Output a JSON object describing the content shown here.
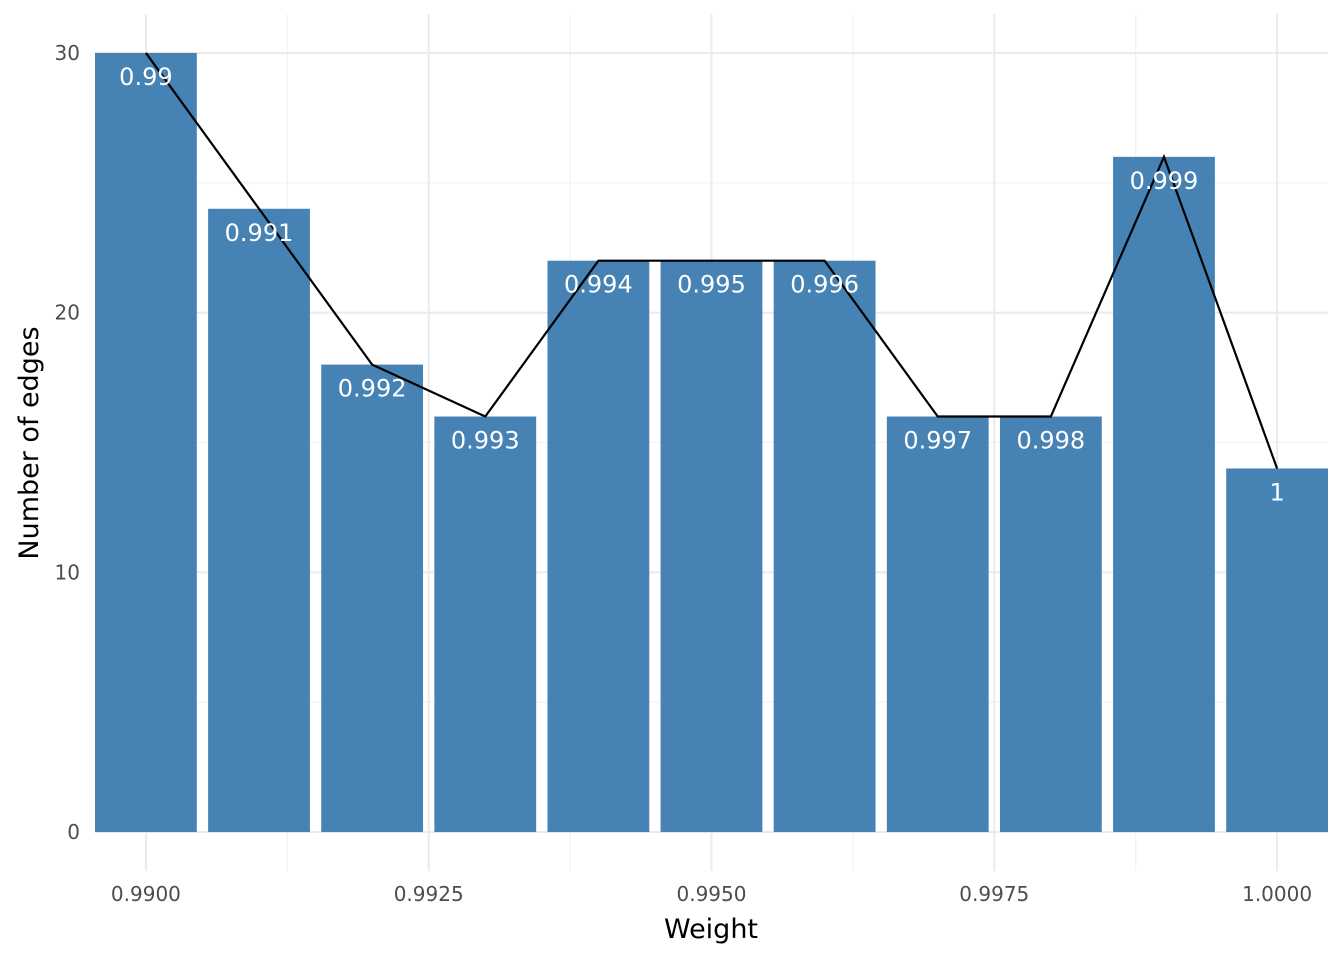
{
  "chart_data": {
    "type": "bar",
    "x": [
      0.99,
      0.991,
      0.992,
      0.993,
      0.994,
      0.995,
      0.996,
      0.997,
      0.998,
      0.999,
      1.0
    ],
    "values": [
      30,
      24,
      18,
      16,
      22,
      22,
      22,
      16,
      16,
      26,
      14
    ],
    "bar_labels": [
      "0.99",
      "0.991",
      "0.992",
      "0.993",
      "0.994",
      "0.995",
      "0.996",
      "0.997",
      "0.998",
      "0.999",
      "1"
    ],
    "overlay": "line",
    "xlabel": "Weight",
    "ylabel": "Number of edges",
    "xticks": [
      0.99,
      0.9925,
      0.995,
      0.9975,
      1.0
    ],
    "xtick_labels": [
      "0.9900",
      "0.9925",
      "0.9950",
      "0.9975",
      "1.0000"
    ],
    "yticks": [
      0,
      10,
      20,
      30
    ],
    "ytick_labels": [
      "0",
      "10",
      "20",
      "30"
    ],
    "xlim": [
      0.98955,
      1.00045
    ],
    "ylim": [
      -1.5,
      31.5
    ],
    "grid": true,
    "colors": {
      "bar": "#4682b4",
      "line": "#000000",
      "bar_label": "#ffffff"
    }
  }
}
